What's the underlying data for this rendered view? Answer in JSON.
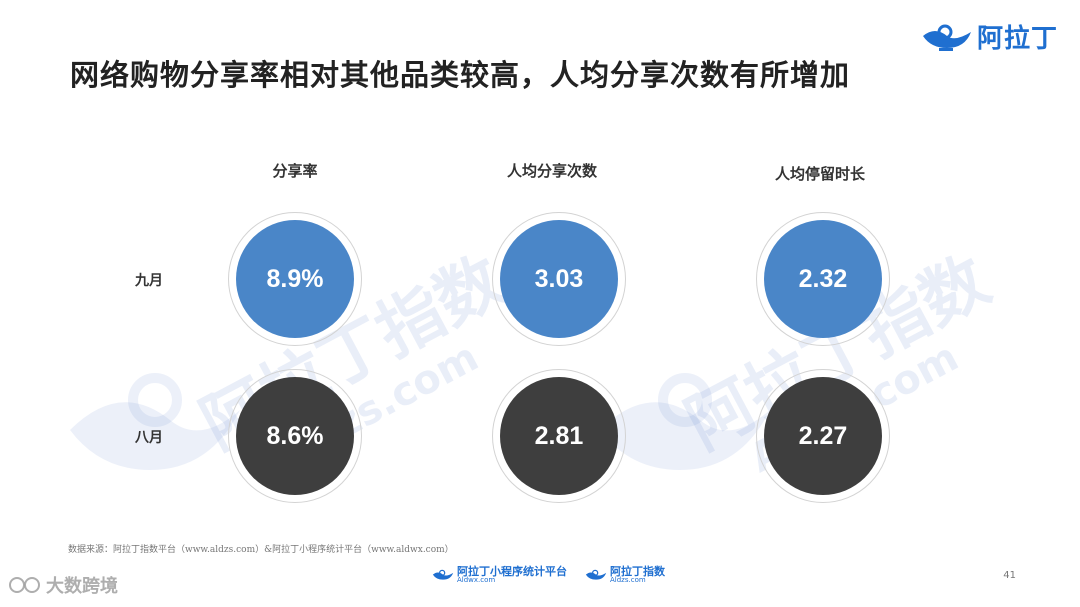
{
  "title": "网络购物分享率相对其他品类较高，人均分享次数有所增加",
  "brand": {
    "name": "阿拉丁",
    "color": "#1f6fd0"
  },
  "columns": [
    "分享率",
    "人均分享次数",
    "人均停留时长"
  ],
  "rows": [
    {
      "label": "九月",
      "values": [
        "8.9%",
        "3.03",
        "2.32"
      ],
      "color": "#4a86c8"
    },
    {
      "label": "八月",
      "values": [
        "8.6%",
        "2.81",
        "2.27"
      ],
      "color": "#3e3e3e"
    }
  ],
  "watermark": {
    "text": "阿拉丁指数",
    "url": "Aldzs.com"
  },
  "source": "数据来源：阿拉丁指数平台（www.aldzs.com）&阿拉丁小程序统计平台（www.aldwx.com）",
  "footer": {
    "logo1": {
      "name": "阿拉丁小程序统计平台",
      "sub": "Aldwx.com"
    },
    "logo2": {
      "name": "阿拉丁指数",
      "sub": "Aldzs.com"
    }
  },
  "page_number": "41",
  "corner_mark": "大数跨境"
}
